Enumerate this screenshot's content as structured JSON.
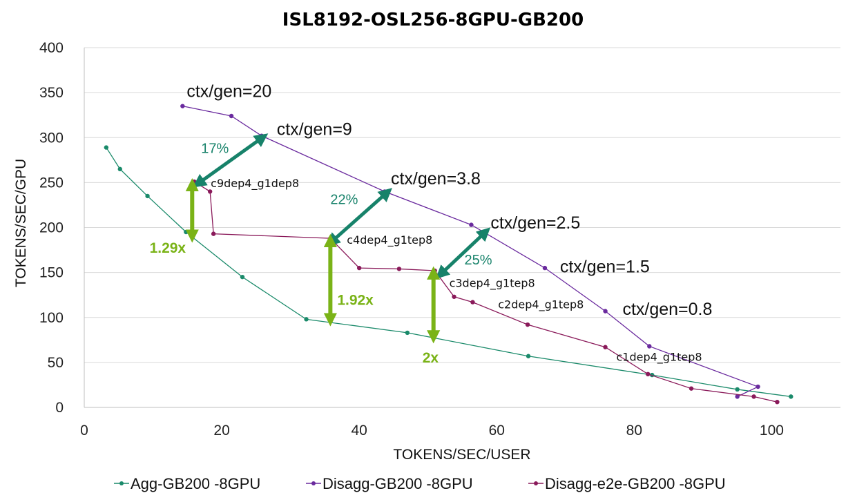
{
  "chart_data": {
    "type": "line",
    "title": "ISL8192-OSL256-8GPU-GB200",
    "xlabel": "TOKENS/SEC/USER",
    "ylabel": "TOKENS/SEC/GPU",
    "xlim": [
      0,
      110
    ],
    "ylim": [
      0,
      400
    ],
    "xticks": [
      0,
      20,
      40,
      60,
      80,
      100
    ],
    "yticks": [
      0,
      50,
      100,
      150,
      200,
      250,
      300,
      350,
      400
    ],
    "grid": "horizontal",
    "legend_position": "bottom",
    "series": [
      {
        "name": "Agg-GB200 -8GPU",
        "color": "#1a8a6a",
        "points": [
          [
            3.2,
            289
          ],
          [
            5.2,
            265
          ],
          [
            9.2,
            235
          ],
          [
            14.8,
            195
          ],
          [
            23.0,
            145
          ],
          [
            32.3,
            98
          ],
          [
            47.0,
            83
          ],
          [
            64.6,
            57
          ],
          [
            82.6,
            36
          ],
          [
            95.0,
            20
          ],
          [
            102.8,
            12
          ]
        ]
      },
      {
        "name": "Disagg-GB200 -8GPU",
        "color": "#6a2a9e",
        "points": [
          [
            14.3,
            335
          ],
          [
            21.4,
            324
          ],
          [
            25.8,
            302
          ],
          [
            43.7,
            240
          ],
          [
            56.3,
            203
          ],
          [
            67.0,
            155
          ],
          [
            75.8,
            107
          ],
          [
            82.2,
            68
          ],
          [
            98.0,
            23
          ],
          [
            95.0,
            12
          ]
        ]
      },
      {
        "name": "Disagg-e2e-GB200 -8GPU",
        "color": "#8a1a5a",
        "points": [
          [
            16.0,
            251
          ],
          [
            18.3,
            240
          ],
          [
            18.8,
            193
          ],
          [
            35.8,
            188
          ],
          [
            40.0,
            155
          ],
          [
            45.8,
            154
          ],
          [
            51.0,
            152
          ],
          [
            53.8,
            123
          ],
          [
            56.5,
            117
          ],
          [
            64.5,
            92
          ],
          [
            75.8,
            67
          ],
          [
            82.0,
            37
          ],
          [
            88.3,
            21
          ],
          [
            97.4,
            12
          ],
          [
            100.8,
            6
          ]
        ]
      }
    ],
    "annotations": {
      "ratios": [
        {
          "text": "ctx/gen=20",
          "x": 14.9,
          "y": 345
        },
        {
          "text": "ctx/gen=9",
          "x": 28.0,
          "y": 303
        },
        {
          "text": "ctx/gen=3.8",
          "x": 44.6,
          "y": 248
        },
        {
          "text": "ctx/gen=2.5",
          "x": 59.1,
          "y": 199
        },
        {
          "text": "ctx/gen=1.5",
          "x": 69.2,
          "y": 150
        },
        {
          "text": "ctx/gen=0.8",
          "x": 78.3,
          "y": 103
        }
      ],
      "configs": [
        {
          "text": "c9dep4_g1dep8",
          "x": 18.4,
          "y": 245
        },
        {
          "text": "c4dep4_g1tep8",
          "x": 38.2,
          "y": 182
        },
        {
          "text": "c3dep4_g1tep8",
          "x": 53.1,
          "y": 134
        },
        {
          "text": "c2dep4_g1tep8",
          "x": 60.2,
          "y": 110
        },
        {
          "text": "c1dep4_g1tep8",
          "x": 77.4,
          "y": 52
        }
      ],
      "gains": [
        {
          "text": "17%",
          "x": 17.0,
          "y": 283,
          "from": [
            16.4,
            248
          ],
          "to": [
            26.1,
            301
          ]
        },
        {
          "text": "22%",
          "x": 35.8,
          "y": 226,
          "from": [
            35.8,
            183
          ],
          "to": [
            44.2,
            240
          ]
        },
        {
          "text": "25%",
          "x": 55.3,
          "y": 159,
          "from": [
            51.7,
            147
          ],
          "to": [
            58.5,
            196
          ]
        }
      ],
      "speedups": [
        {
          "text": "1.29x",
          "x": 9.5,
          "y": 172,
          "from_y": 189,
          "to_y": 249,
          "at_x": 15.7
        },
        {
          "text": "1.92x",
          "x": 36.8,
          "y": 114,
          "from_y": 96,
          "to_y": 187,
          "at_x": 35.8
        },
        {
          "text": "2x",
          "x": 49.2,
          "y": 50,
          "from_y": 77,
          "to_y": 151,
          "at_x": 50.8
        }
      ]
    }
  }
}
